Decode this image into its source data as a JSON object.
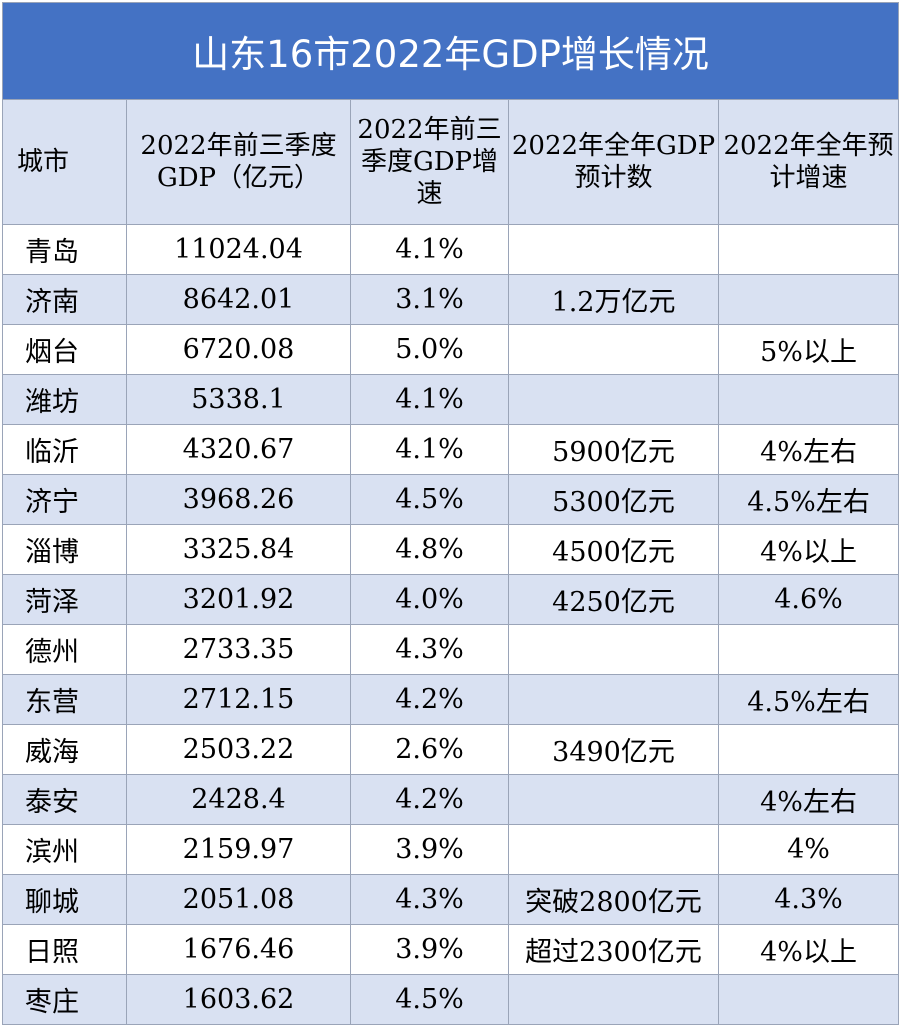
{
  "title": "山东16市2022年GDP增长情况",
  "headers": [
    "城市",
    "2022年前三季度GDP（亿元）",
    "2022年前三季度GDP增速",
    "2022年全年GDP预计数",
    "2022年全年预计增速"
  ],
  "rows": [
    {
      "city": "青岛",
      "gdp_q3": "11024.04",
      "growth_q3": "4.1%",
      "gdp_forecast": "",
      "growth_forecast": ""
    },
    {
      "city": "济南",
      "gdp_q3": "8642.01",
      "growth_q3": "3.1%",
      "gdp_forecast": "1.2万亿元",
      "growth_forecast": ""
    },
    {
      "city": "烟台",
      "gdp_q3": "6720.08",
      "growth_q3": "5.0%",
      "gdp_forecast": "",
      "growth_forecast": "5%以上"
    },
    {
      "city": "潍坊",
      "gdp_q3": "5338.1",
      "growth_q3": "4.1%",
      "gdp_forecast": "",
      "growth_forecast": ""
    },
    {
      "city": "临沂",
      "gdp_q3": "4320.67",
      "growth_q3": "4.1%",
      "gdp_forecast": "5900亿元",
      "growth_forecast": "4%左右"
    },
    {
      "city": "济宁",
      "gdp_q3": "3968.26",
      "growth_q3": "4.5%",
      "gdp_forecast": "5300亿元",
      "growth_forecast": "4.5%左右"
    },
    {
      "city": "淄博",
      "gdp_q3": "3325.84",
      "growth_q3": "4.8%",
      "gdp_forecast": "4500亿元",
      "growth_forecast": "4%以上"
    },
    {
      "city": "菏泽",
      "gdp_q3": "3201.92",
      "growth_q3": "4.0%",
      "gdp_forecast": "4250亿元",
      "growth_forecast": "4.6%"
    },
    {
      "city": "德州",
      "gdp_q3": "2733.35",
      "growth_q3": "4.3%",
      "gdp_forecast": "",
      "growth_forecast": ""
    },
    {
      "city": "东营",
      "gdp_q3": "2712.15",
      "growth_q3": "4.2%",
      "gdp_forecast": "",
      "growth_forecast": "4.5%左右"
    },
    {
      "city": "威海",
      "gdp_q3": "2503.22",
      "growth_q3": "2.6%",
      "gdp_forecast": "3490亿元",
      "growth_forecast": ""
    },
    {
      "city": "泰安",
      "gdp_q3": "2428.4",
      "growth_q3": "4.2%",
      "gdp_forecast": "",
      "growth_forecast": "4%左右"
    },
    {
      "city": "滨州",
      "gdp_q3": "2159.97",
      "growth_q3": "3.9%",
      "gdp_forecast": "",
      "growth_forecast": "4%"
    },
    {
      "city": "聊城",
      "gdp_q3": "2051.08",
      "growth_q3": "4.3%",
      "gdp_forecast": "突破2800亿元",
      "growth_forecast": "4.3%"
    },
    {
      "city": "日照",
      "gdp_q3": "1676.46",
      "growth_q3": "3.9%",
      "gdp_forecast": "超过2300亿元",
      "growth_forecast": "4%以上"
    },
    {
      "city": "枣庄",
      "gdp_q3": "1603.62",
      "growth_q3": "4.5%",
      "gdp_forecast": "",
      "growth_forecast": ""
    }
  ],
  "colors": {
    "title_bg": "#4472c4",
    "band_bg": "#d9e1f2",
    "plain_bg": "#ffffff",
    "grid": "#9aa4b8"
  }
}
